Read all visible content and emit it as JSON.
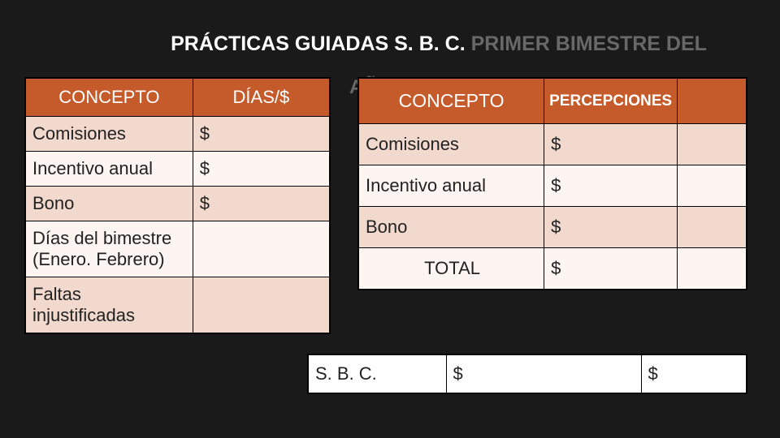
{
  "colors": {
    "background": "#1a1a1a",
    "header_bg": "#c55a2b",
    "header_text": "#ffffff",
    "row_alt_1": "#f1d9ce",
    "row_alt_2": "#fcf5f1",
    "title_white": "#ffffff",
    "title_gray": "#686868",
    "border": "#000000"
  },
  "typography": {
    "title_fontsize": 25,
    "table_fontsize": 22,
    "font_family": "Arial"
  },
  "title": {
    "part1": "PRÁCTICAS GUIADAS S. B. C. ",
    "part2": "PRIMER BIMESTRE DEL",
    "year_line": "AÑO"
  },
  "left_table": {
    "headers": [
      "CONCEPTO",
      "DÍAS/$"
    ],
    "rows": [
      {
        "concepto": "Comisiones",
        "valor": "$"
      },
      {
        "concepto": "Incentivo anual",
        "valor": "$"
      },
      {
        "concepto": "Bono",
        "valor": "$"
      },
      {
        "concepto": "Días del bimestre (Enero. Febrero)",
        "valor": ""
      },
      {
        "concepto": "Faltas injustificadas",
        "valor": ""
      }
    ]
  },
  "right_table": {
    "headers": [
      "CONCEPTO",
      "PERCEPCIONES",
      ""
    ],
    "rows": [
      {
        "concepto": "Comisiones",
        "percep": "$",
        "extra": ""
      },
      {
        "concepto": "Incentivo anual",
        "percep": "$",
        "extra": ""
      },
      {
        "concepto": "Bono",
        "percep": "$",
        "extra": ""
      },
      {
        "concepto": "TOTAL",
        "percep": "$",
        "extra": ""
      }
    ]
  },
  "sbc_row": {
    "label": "S. B. C.",
    "val1": "$",
    "val2": "$"
  }
}
